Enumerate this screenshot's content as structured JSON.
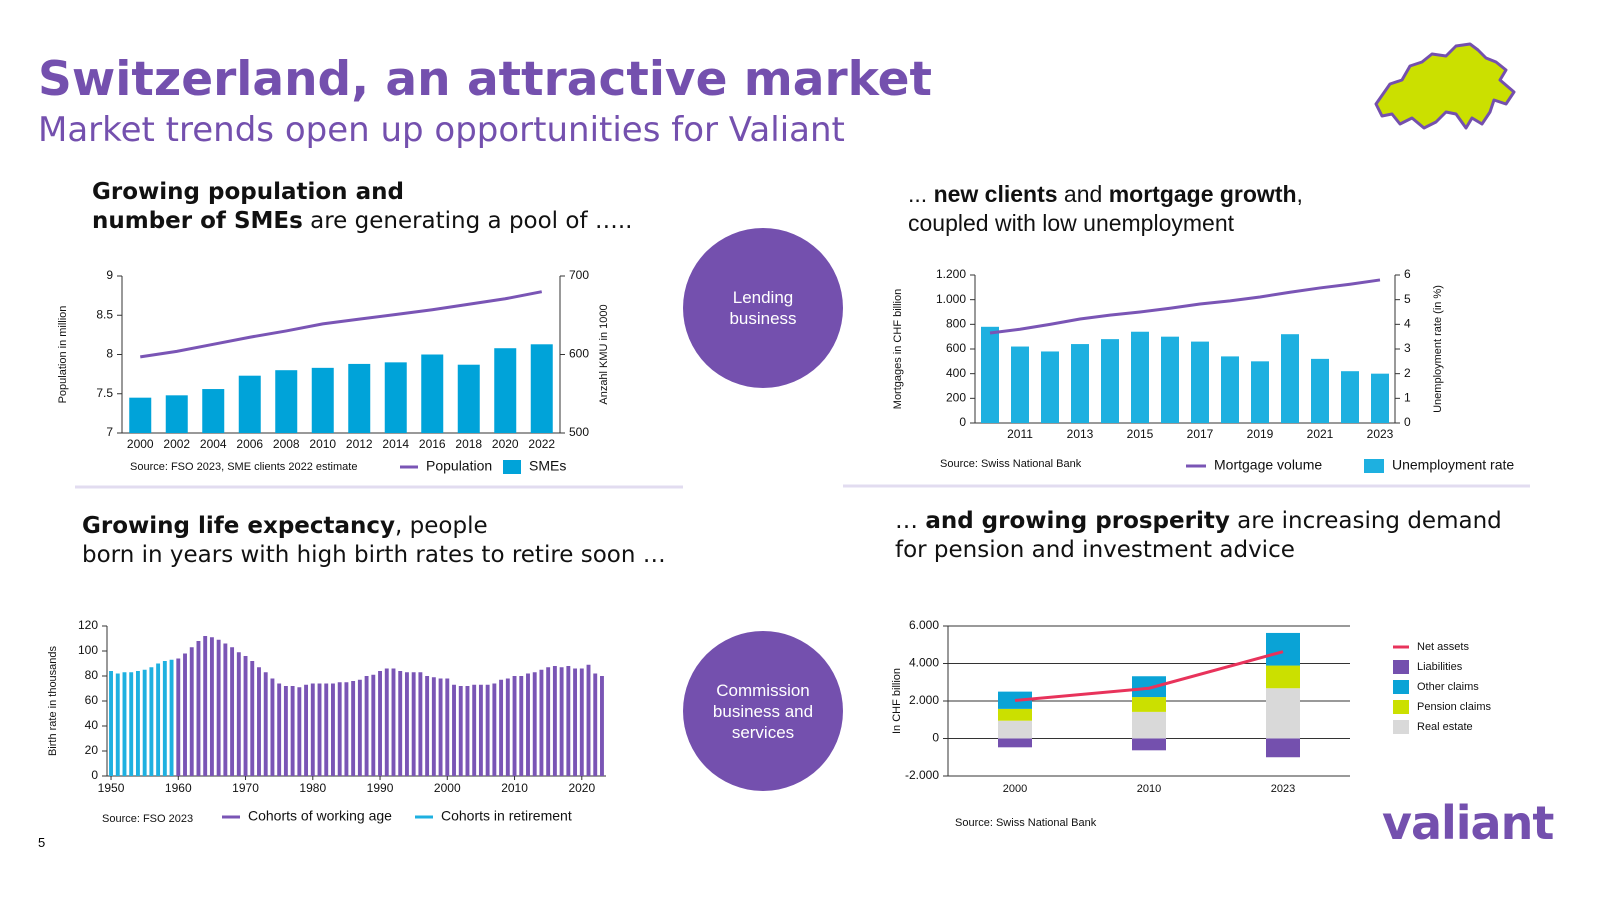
{
  "header": {
    "title": "Switzerland, an attractive market",
    "subtitle": "Market trends open up opportunities for Valiant"
  },
  "headings": [
    {
      "lines": [
        [
          {
            "text": "Growing population and",
            "bold": true
          }
        ],
        [
          {
            "text": "number of SMEs",
            "bold": true
          },
          {
            "text": " are generating a pool of …..",
            "bold": false
          }
        ]
      ]
    },
    {
      "lines": [
        [
          {
            "text": "... ",
            "bold": false
          },
          {
            "text": "new clients",
            "bold": true
          },
          {
            "text": " and ",
            "bold": false
          },
          {
            "text": "mortgage growth",
            "bold": true
          },
          {
            "text": ",",
            "bold": false
          }
        ],
        [
          {
            "text": "coupled with low unemployment",
            "bold": false
          }
        ]
      ]
    },
    {
      "lines": [
        [
          {
            "text": "Growing life expectancy",
            "bold": true
          },
          {
            "text": ", people",
            "bold": false
          }
        ],
        [
          {
            "text": "born in years with high birth rates to retire soon …",
            "bold": false
          }
        ]
      ]
    },
    {
      "lines": [
        [
          {
            "text": "… ",
            "bold": false
          },
          {
            "text": "and growing prosperity",
            "bold": true
          },
          {
            "text": " are increasing demand",
            "bold": false
          }
        ],
        [
          {
            "text": "for pension and investment advice",
            "bold": false
          }
        ]
      ]
    }
  ],
  "circles": [
    "Lending business",
    "Commission business and services"
  ],
  "page_number": "5",
  "logo": "valiant",
  "chart_data": [
    {
      "type": "combo",
      "categories": [
        "2000",
        "2002",
        "2004",
        "2006",
        "2008",
        "2010",
        "2012",
        "2014",
        "2016",
        "2018",
        "2020",
        "2022"
      ],
      "series": [
        {
          "name": "Population",
          "type": "line",
          "color": "#7a55b5",
          "values": [
            7.97,
            8.04,
            8.13,
            8.22,
            8.3,
            8.39,
            8.45,
            8.51,
            8.57,
            8.64,
            8.71,
            8.8
          ]
        },
        {
          "name": "SMEs",
          "type": "bar",
          "axis": "y2",
          "color": "#00a3d9",
          "values": [
            545,
            548,
            556,
            573,
            580,
            583,
            588,
            590,
            600,
            587,
            608,
            613
          ]
        }
      ],
      "ylabel": "Population in million",
      "y2label": "Anzahl KMU in 1000",
      "ylim": [
        7,
        9
      ],
      "yticks": [
        7,
        7.5,
        8,
        8.5,
        9
      ],
      "y2lim": [
        500,
        700
      ],
      "y2ticks": [
        500,
        600,
        700
      ],
      "source": "Source: FSO 2023, SME clients 2022 estimate"
    },
    {
      "type": "combo",
      "categories": [
        null,
        "2011",
        null,
        "2013",
        null,
        "2015",
        null,
        "2017",
        null,
        "2019",
        null,
        "2021",
        null,
        "2023"
      ],
      "series": [
        {
          "name": "Mortgage volume",
          "type": "line",
          "color": "#7a55b5",
          "values": [
            730,
            760,
            800,
            843,
            875,
            900,
            930,
            965,
            990,
            1022,
            1060,
            1095,
            1125,
            1160
          ]
        },
        {
          "name": "Unemployment rate",
          "type": "bar",
          "axis": "y2",
          "color": "#1eb0e0",
          "values": [
            3.9,
            3.1,
            2.9,
            3.2,
            3.4,
            3.7,
            3.5,
            3.3,
            2.7,
            2.5,
            3.6,
            2.6,
            2.1,
            2.0
          ]
        }
      ],
      "ylabel": "Mortgages in CHF billion",
      "y2label": "Unemployment rate (in %)",
      "ylim": [
        0,
        1200
      ],
      "yticks": [
        0,
        200,
        400,
        600,
        800,
        {
          "value": 1000,
          "label": "1.000"
        },
        {
          "value": 1200,
          "label": "1.200"
        }
      ],
      "y2lim": [
        0,
        6
      ],
      "y2ticks": [
        0,
        1,
        2,
        3,
        4,
        5,
        6
      ],
      "source": "Source: Swiss National Bank"
    },
    {
      "type": "bar",
      "x": [
        1950,
        1951,
        1952,
        1953,
        1954,
        1955,
        1956,
        1957,
        1958,
        1959,
        1960,
        1961,
        1962,
        1963,
        1964,
        1965,
        1966,
        1967,
        1968,
        1969,
        1970,
        1971,
        1972,
        1973,
        1974,
        1975,
        1976,
        1977,
        1978,
        1979,
        1980,
        1981,
        1982,
        1983,
        1984,
        1985,
        1986,
        1987,
        1988,
        1989,
        1990,
        1991,
        1992,
        1993,
        1994,
        1995,
        1996,
        1997,
        1998,
        1999,
        2000,
        2001,
        2002,
        2003,
        2004,
        2005,
        2006,
        2007,
        2008,
        2009,
        2010,
        2011,
        2012,
        2013,
        2014,
        2015,
        2016,
        2017,
        2018,
        2019,
        2020,
        2021,
        2022,
        2023
      ],
      "series": [
        {
          "name": "Cohorts of working age",
          "color": "#7a55b5",
          "values": [
            null,
            null,
            null,
            null,
            null,
            null,
            null,
            null,
            null,
            null,
            94,
            98,
            103,
            108,
            112,
            111,
            109,
            106,
            103,
            99,
            96,
            92,
            87,
            83,
            78,
            74,
            72,
            72,
            71,
            73,
            74,
            74,
            74,
            74,
            75,
            75,
            76,
            77,
            80,
            81,
            84,
            86,
            86,
            84,
            83,
            83,
            83,
            80,
            79,
            78,
            78,
            73,
            72,
            72,
            73,
            73,
            73,
            74,
            77,
            78,
            80,
            80,
            82,
            83,
            85,
            87,
            88,
            87,
            88,
            86,
            86,
            89,
            82,
            80
          ]
        },
        {
          "name": "Cohorts in retirement",
          "color": "#1eb0e0",
          "values": [
            84,
            82,
            83,
            83,
            84,
            85,
            87,
            90,
            92,
            93,
            null,
            null,
            null,
            null,
            null,
            null,
            null,
            null,
            null,
            null,
            null,
            null,
            null,
            null,
            null,
            null,
            null,
            null,
            null,
            null,
            null,
            null,
            null,
            null,
            null,
            null,
            null,
            null,
            null,
            null,
            null,
            null,
            null,
            null,
            null,
            null,
            null,
            null,
            null,
            null,
            null,
            null,
            null,
            null,
            null,
            null,
            null,
            null,
            null,
            null,
            null,
            null,
            null,
            null,
            null,
            null,
            null,
            null,
            null,
            null,
            null,
            null,
            null,
            null
          ]
        }
      ],
      "ylabel": "Birth rate in thousands",
      "xlim": [
        1949.4,
        2023.6
      ],
      "xticks": [
        1950,
        1960,
        1970,
        1980,
        1990,
        2000,
        2010,
        2020
      ],
      "ylim": [
        0,
        120
      ],
      "yticks": [
        0,
        20,
        40,
        60,
        80,
        100,
        120
      ],
      "source": "Source: FSO 2023"
    },
    {
      "type": "stacked",
      "categories": [
        "2000",
        "2010",
        "2023"
      ],
      "series": [
        {
          "name": "Net assets",
          "type": "line",
          "color": "#e8335b",
          "values": [
            2030,
            2680,
            4630
          ]
        },
        {
          "name": "Liabilities",
          "type": "bar",
          "color": "#7450ae",
          "values": [
            -470,
            -630,
            -1000
          ]
        },
        {
          "name": "Other claims",
          "type": "bar",
          "color": "#0aa3d6",
          "values": [
            920,
            1110,
            1740
          ]
        },
        {
          "name": "Pension claims",
          "type": "bar",
          "color": "#cbe000",
          "values": [
            630,
            790,
            1210
          ]
        },
        {
          "name": "Real estate",
          "type": "bar",
          "color": "#d9d9d9",
          "values": [
            950,
            1420,
            2680
          ]
        }
      ],
      "ylabel": "In CHF billion",
      "ylim": [
        -2000,
        6000
      ],
      "yticks": [
        {
          "value": -2000,
          "label": "-2.000"
        },
        0,
        {
          "value": 2000,
          "label": "2.000"
        },
        {
          "value": 4000,
          "label": "4.000"
        },
        {
          "value": 6000,
          "label": "6.000"
        }
      ],
      "grid": true,
      "source": "Source: Swiss National Bank"
    }
  ]
}
